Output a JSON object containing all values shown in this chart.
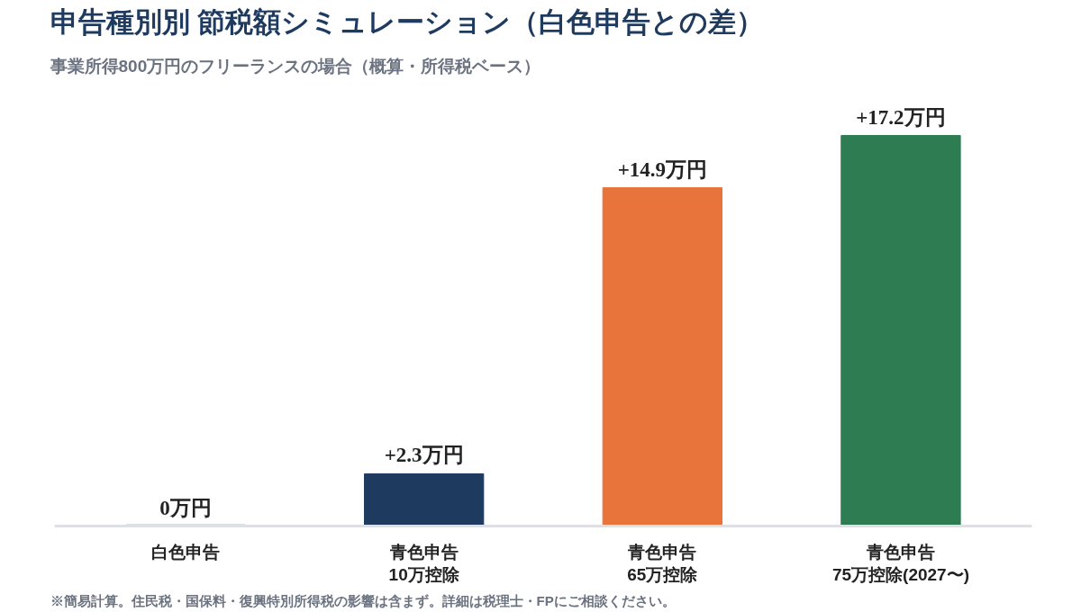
{
  "chart_data": {
    "type": "bar",
    "title": "申告種別別 節税額シミュレーション（白色申告との差）",
    "subtitle": "事業所得800万円のフリーランスの場合（概算・所得税ベース）",
    "categories": [
      "白色申告",
      "青色申告\n10万控除",
      "青色申告\n65万控除",
      "青色申告\n75万控除(2027〜)"
    ],
    "values": [
      0,
      2.3,
      14.9,
      17.2
    ],
    "colors": [
      "#8a9bb0",
      "#1f3a5f",
      "#e8743b",
      "#2e7d52"
    ],
    "value_labels": [
      "0万円",
      "+2.3万円",
      "+14.9万円",
      "+17.2万円"
    ],
    "annotations": [
      "※簡易計算。住民税・国保料・復興特別所得税の影響は含まず。詳細は税理士・FPにご相談ください。"
    ],
    "grid": false
  }
}
